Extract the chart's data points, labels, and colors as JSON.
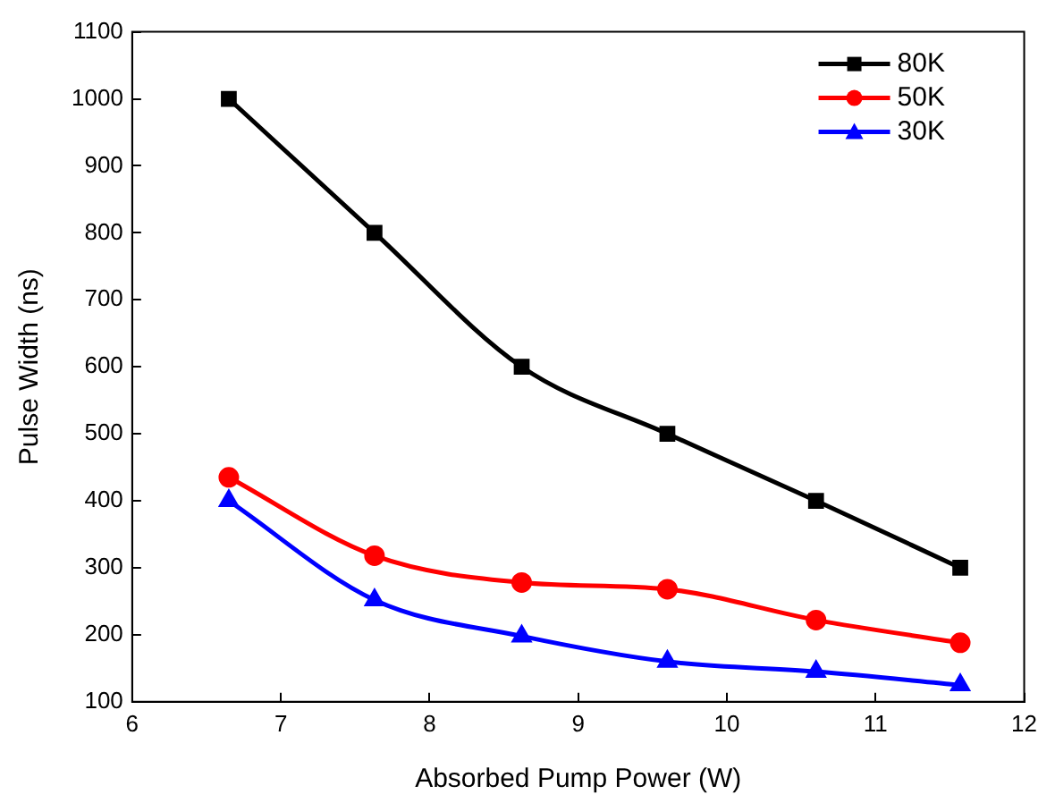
{
  "chart_data": {
    "type": "line",
    "xlabel": "Absorbed Pump Power (W)",
    "ylabel": "Pulse Width (ns)",
    "x": [
      6.65,
      7.63,
      8.62,
      9.6,
      10.6,
      11.57
    ],
    "series": [
      {
        "name": "80K",
        "color": "#000000",
        "marker": "square",
        "values": [
          1000,
          800,
          600,
          500,
          400,
          300
        ]
      },
      {
        "name": "50K",
        "color": "#ff0000",
        "marker": "circle",
        "values": [
          435,
          318,
          278,
          268,
          222,
          188
        ]
      },
      {
        "name": "30K",
        "color": "#0000ff",
        "marker": "triangle",
        "values": [
          400,
          252,
          198,
          160,
          145,
          125
        ]
      }
    ],
    "xlim": [
      6,
      12
    ],
    "xticks": [
      6,
      7,
      8,
      9,
      10,
      11,
      12
    ],
    "ylim": [
      100,
      1100
    ],
    "yticks": [
      100,
      200,
      300,
      400,
      500,
      600,
      700,
      800,
      900,
      1000,
      1100
    ],
    "grid": false,
    "legend": "top right"
  }
}
